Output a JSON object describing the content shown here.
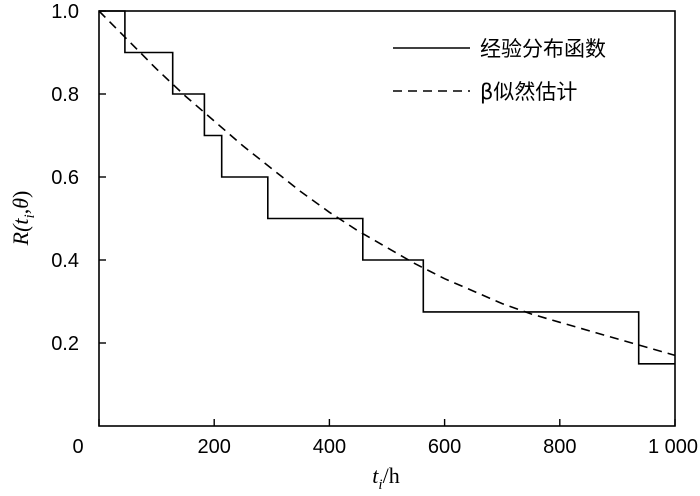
{
  "chart_data": {
    "type": "line",
    "xlabel": {
      "main": "t",
      "sub": "i",
      "suffix": "/h"
    },
    "ylabel": {
      "prefix": "R(",
      "t": "t",
      "sub": "i",
      "mid": ",",
      "theta": "θ",
      "close": ")"
    },
    "xlim": [
      0,
      1000
    ],
    "ylim": [
      0,
      1.0
    ],
    "xticks": [
      {
        "value": 0,
        "label": "0"
      },
      {
        "value": 200,
        "label": "200"
      },
      {
        "value": 400,
        "label": "400"
      },
      {
        "value": 600,
        "label": "600"
      },
      {
        "value": 800,
        "label": "800"
      },
      {
        "value": 1000,
        "label": "1 000"
      }
    ],
    "yticks": [
      {
        "value": 0.2,
        "label": "0.2"
      },
      {
        "value": 0.4,
        "label": "0.4"
      },
      {
        "value": 0.6,
        "label": "0.6"
      },
      {
        "value": 0.8,
        "label": "0.8"
      },
      {
        "value": 1.0,
        "label": "1.0"
      }
    ],
    "series": [
      {
        "name": "经验分布函数",
        "style": "solid",
        "step_points": [
          [
            0,
            1.0
          ],
          [
            45,
            1.0
          ],
          [
            45,
            0.9
          ],
          [
            128,
            0.9
          ],
          [
            128,
            0.8
          ],
          [
            183,
            0.8
          ],
          [
            183,
            0.7
          ],
          [
            213,
            0.7
          ],
          [
            213,
            0.6
          ],
          [
            293,
            0.6
          ],
          [
            293,
            0.5
          ],
          [
            458,
            0.5
          ],
          [
            458,
            0.4
          ],
          [
            563,
            0.4
          ],
          [
            563,
            0.275
          ],
          [
            937,
            0.275
          ],
          [
            937,
            0.15
          ],
          [
            1000,
            0.15
          ]
        ]
      },
      {
        "name": "β似然估计",
        "style": "dashed",
        "x": [
          0,
          50,
          100,
          150,
          200,
          250,
          300,
          350,
          400,
          450,
          500,
          550,
          600,
          650,
          700,
          750,
          800,
          850,
          900,
          950,
          1000
        ],
        "y": [
          1.0,
          0.93,
          0.86,
          0.795,
          0.735,
          0.675,
          0.62,
          0.565,
          0.515,
          0.47,
          0.43,
          0.39,
          0.355,
          0.325,
          0.295,
          0.27,
          0.25,
          0.23,
          0.21,
          0.19,
          0.17
        ]
      }
    ],
    "legend_position": "top-right"
  }
}
